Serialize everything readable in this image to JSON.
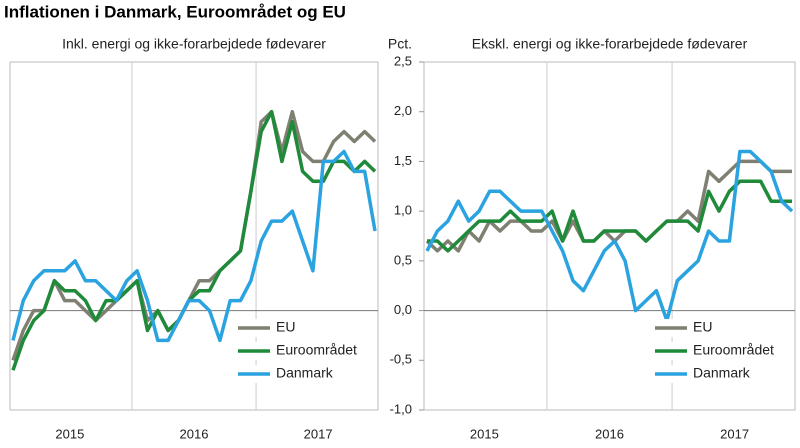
{
  "title": "Inflationen i Danmark, Euroområdet og EU",
  "chart_data": [
    {
      "type": "line",
      "title": "Inkl. energi og ikke-forarbejdede fødevarer",
      "categories": [
        null,
        null,
        null,
        null,
        null,
        "2015",
        null,
        null,
        null,
        null,
        null,
        null,
        null,
        null,
        null,
        null,
        null,
        "2016",
        null,
        null,
        null,
        null,
        null,
        null,
        null,
        null,
        null,
        null,
        null,
        "2017",
        null,
        null,
        null,
        null,
        null,
        null
      ],
      "ylim": [
        -1.0,
        2.5
      ],
      "legend": "lower right",
      "series": [
        {
          "name": "EU",
          "color": "#7f7f72",
          "values": [
            -0.5,
            -0.2,
            0.0,
            0.0,
            0.3,
            0.1,
            0.1,
            0.0,
            -0.1,
            0.0,
            0.1,
            0.2,
            0.3,
            -0.1,
            0.0,
            -0.2,
            -0.1,
            0.1,
            0.3,
            0.3,
            0.4,
            0.5,
            0.6,
            1.2,
            1.9,
            2.0,
            1.6,
            2.0,
            1.6,
            1.5,
            1.5,
            1.7,
            1.8,
            1.7,
            1.8,
            1.7
          ]
        },
        {
          "name": "Euroområdet",
          "color": "#1e8a3a",
          "values": [
            -0.6,
            -0.3,
            -0.1,
            0.0,
            0.3,
            0.2,
            0.2,
            0.1,
            -0.1,
            0.1,
            0.1,
            0.2,
            0.3,
            -0.2,
            0.0,
            -0.2,
            -0.1,
            0.1,
            0.2,
            0.2,
            0.4,
            0.5,
            0.6,
            1.2,
            1.8,
            2.0,
            1.5,
            1.9,
            1.4,
            1.3,
            1.3,
            1.5,
            1.5,
            1.4,
            1.5,
            1.4
          ]
        },
        {
          "name": "Danmark",
          "color": "#2aa3e0",
          "values": [
            -0.3,
            0.1,
            0.3,
            0.4,
            0.4,
            0.4,
            0.5,
            0.3,
            0.3,
            0.2,
            0.1,
            0.3,
            0.4,
            0.1,
            -0.3,
            -0.3,
            -0.1,
            0.1,
            0.1,
            0.0,
            -0.3,
            0.1,
            0.1,
            0.3,
            0.7,
            0.9,
            0.9,
            1.0,
            0.7,
            0.4,
            1.5,
            1.5,
            1.6,
            1.4,
            1.4,
            0.8
          ]
        }
      ]
    },
    {
      "type": "line",
      "title": "Ekskl. energi og ikke-forarbejdede fødevarer",
      "y_label": "Pct.",
      "categories": [
        null,
        null,
        null,
        null,
        null,
        "2015",
        null,
        null,
        null,
        null,
        null,
        null,
        null,
        null,
        null,
        null,
        null,
        "2016",
        null,
        null,
        null,
        null,
        null,
        null,
        null,
        null,
        null,
        null,
        null,
        "2017",
        null,
        null,
        null,
        null,
        null,
        null
      ],
      "ylim": [
        -1.0,
        2.5
      ],
      "legend": "lower right",
      "yticks": [
        {
          "value": 2.5,
          "label": "2,5"
        },
        {
          "value": 2.0,
          "label": "2,0"
        },
        {
          "value": 1.5,
          "label": "1,5"
        },
        {
          "value": 1.0,
          "label": "1,0"
        },
        {
          "value": 0.5,
          "label": "0,5"
        },
        {
          "value": 0.0,
          "label": "0,0"
        },
        {
          "value": -0.5,
          "label": "-0,5"
        },
        {
          "value": -1.0,
          "label": "-1,0"
        }
      ],
      "series": [
        {
          "name": "EU",
          "color": "#7f7f72",
          "values": [
            0.7,
            0.6,
            0.7,
            0.6,
            0.8,
            0.7,
            0.9,
            0.8,
            0.9,
            0.9,
            0.8,
            0.8,
            0.9,
            0.7,
            0.9,
            0.7,
            0.7,
            0.8,
            0.7,
            0.8,
            0.8,
            0.7,
            0.8,
            0.9,
            0.9,
            1.0,
            0.9,
            1.4,
            1.3,
            1.4,
            1.5,
            1.5,
            1.5,
            1.4,
            1.4,
            1.4
          ]
        },
        {
          "name": "Euroområdet",
          "color": "#1e8a3a",
          "values": [
            0.7,
            0.7,
            0.6,
            0.7,
            0.8,
            0.9,
            0.9,
            0.9,
            1.0,
            0.9,
            0.9,
            0.9,
            1.0,
            0.7,
            1.0,
            0.7,
            0.7,
            0.8,
            0.8,
            0.8,
            0.8,
            0.7,
            0.8,
            0.9,
            0.9,
            0.9,
            0.8,
            1.2,
            1.0,
            1.2,
            1.3,
            1.3,
            1.3,
            1.1,
            1.1,
            1.1
          ]
        },
        {
          "name": "Danmark",
          "color": "#2aa3e0",
          "values": [
            0.6,
            0.8,
            0.9,
            1.1,
            0.9,
            1.0,
            1.2,
            1.2,
            1.1,
            1.0,
            1.0,
            1.0,
            0.8,
            0.6,
            0.3,
            0.2,
            0.4,
            0.6,
            0.7,
            0.5,
            0.0,
            0.1,
            0.2,
            -0.1,
            0.3,
            0.4,
            0.5,
            0.8,
            0.7,
            0.7,
            1.6,
            1.6,
            1.5,
            1.4,
            1.1,
            1.0
          ]
        }
      ]
    }
  ]
}
